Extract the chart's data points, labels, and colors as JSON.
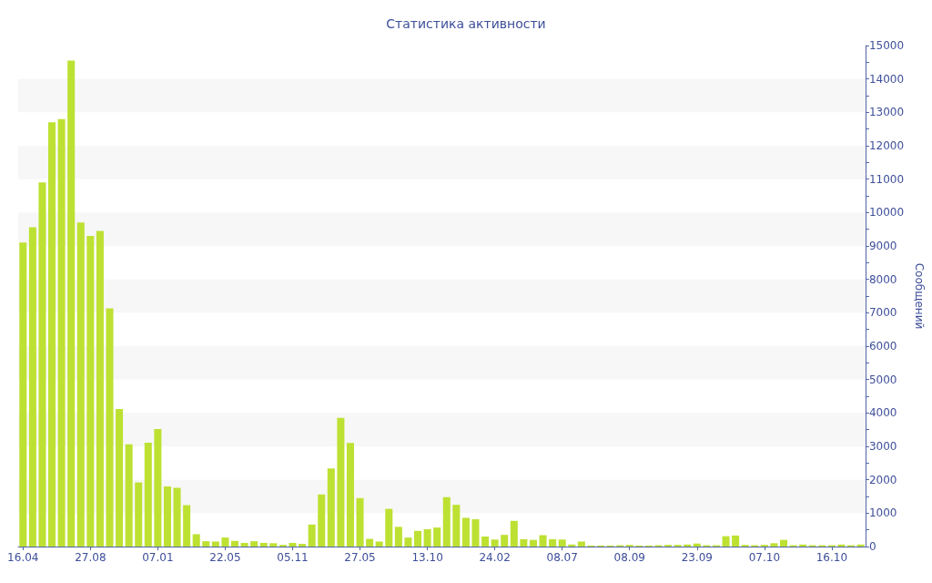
{
  "chart_data": {
    "type": "bar",
    "title": "Статистика активности",
    "ylabel": "Сообщений",
    "color": "#bde132",
    "categories": [
      "16.04",
      null,
      null,
      null,
      null,
      null,
      null,
      "27.08",
      null,
      null,
      null,
      null,
      null,
      null,
      "07.01",
      null,
      null,
      null,
      null,
      null,
      null,
      "22.05",
      null,
      null,
      null,
      null,
      null,
      null,
      "05.11",
      null,
      null,
      null,
      null,
      null,
      null,
      "27.05",
      null,
      null,
      null,
      null,
      null,
      null,
      "13.10",
      null,
      null,
      null,
      null,
      null,
      null,
      "24.02",
      null,
      null,
      null,
      null,
      null,
      null,
      "08.07",
      null,
      null,
      null,
      null,
      null,
      null,
      "08.09",
      null,
      null,
      null,
      null,
      null,
      null,
      "23.09",
      null,
      null,
      null,
      null,
      null,
      null,
      "07.10",
      null,
      null,
      null,
      null,
      null,
      null,
      "16.10",
      null,
      null,
      null
    ],
    "values": [
      9100,
      9560,
      10900,
      12700,
      12800,
      14550,
      9700,
      9300,
      9450,
      7130,
      4120,
      3060,
      1920,
      3110,
      3520,
      1800,
      1760,
      1240,
      370,
      160,
      150,
      270,
      170,
      110,
      160,
      110,
      100,
      50,
      110,
      80,
      660,
      1560,
      2340,
      3850,
      3100,
      1450,
      230,
      150,
      1130,
      590,
      270,
      470,
      520,
      570,
      1480,
      1250,
      860,
      820,
      300,
      210,
      350,
      770,
      220,
      200,
      340,
      220,
      210,
      60,
      150,
      30,
      30,
      30,
      40,
      50,
      30,
      30,
      40,
      50,
      50,
      60,
      90,
      40,
      40,
      310,
      330,
      50,
      40,
      50,
      100,
      200,
      40,
      60,
      40,
      40,
      40,
      60,
      40,
      60
    ],
    "ylim": [
      0,
      15000
    ],
    "yticks": [
      0,
      {
        "value": 500,
        "label": null
      },
      1000,
      {
        "value": 1500,
        "label": null
      },
      2000,
      {
        "value": 2500,
        "label": null
      },
      3000,
      {
        "value": 3500,
        "label": null
      },
      4000,
      {
        "value": 4500,
        "label": null
      },
      5000,
      {
        "value": 5500,
        "label": null
      },
      6000,
      {
        "value": 6500,
        "label": null
      },
      7000,
      {
        "value": 7500,
        "label": null
      },
      8000,
      {
        "value": 8500,
        "label": null
      },
      9000,
      {
        "value": 9500,
        "label": null
      },
      10000,
      {
        "value": 10500,
        "label": null
      },
      11000,
      {
        "value": 11500,
        "label": null
      },
      12000,
      {
        "value": 12500,
        "label": null
      },
      13000,
      {
        "value": 13500,
        "label": null
      },
      14000,
      {
        "value": 14500,
        "label": null
      },
      15000
    ]
  }
}
